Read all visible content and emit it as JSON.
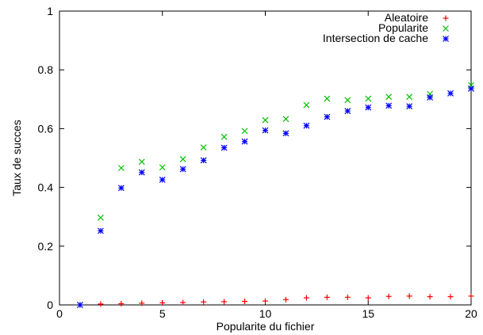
{
  "chart_data": {
    "type": "scatter",
    "title": "",
    "xlabel": "Popularite du fichier",
    "ylabel": "Taux de succes",
    "xlim": [
      0,
      20
    ],
    "ylim": [
      0,
      1
    ],
    "x_ticks": [
      "0",
      "5",
      "10",
      "15",
      "20"
    ],
    "y_ticks": [
      "0",
      "0.2",
      "0.4",
      "0.6",
      "0.8",
      "1"
    ],
    "grid": false,
    "legend_position": "top-right",
    "series": [
      {
        "name": "Aleatoire",
        "color": "#ff0000",
        "marker": "plus",
        "points": [
          [
            1,
            0.0
          ],
          [
            2,
            0.003
          ],
          [
            3,
            0.004
          ],
          [
            4,
            0.006
          ],
          [
            5,
            0.007
          ],
          [
            6,
            0.008
          ],
          [
            7,
            0.01
          ],
          [
            8,
            0.011
          ],
          [
            9,
            0.012
          ],
          [
            10,
            0.013
          ],
          [
            11,
            0.018
          ],
          [
            12,
            0.024
          ],
          [
            13,
            0.026
          ],
          [
            14,
            0.026
          ],
          [
            15,
            0.024
          ],
          [
            16,
            0.029
          ],
          [
            17,
            0.03
          ],
          [
            18,
            0.028
          ],
          [
            19,
            0.028
          ],
          [
            20,
            0.03
          ]
        ]
      },
      {
        "name": "Popularite",
        "color": "#00c000",
        "marker": "cross",
        "points": [
          [
            1,
            0.0
          ],
          [
            2,
            0.297
          ],
          [
            3,
            0.466
          ],
          [
            4,
            0.487
          ],
          [
            5,
            0.468
          ],
          [
            6,
            0.496
          ],
          [
            7,
            0.536
          ],
          [
            8,
            0.572
          ],
          [
            9,
            0.592
          ],
          [
            10,
            0.629
          ],
          [
            11,
            0.633
          ],
          [
            12,
            0.68
          ],
          [
            13,
            0.702
          ],
          [
            14,
            0.697
          ],
          [
            15,
            0.702
          ],
          [
            16,
            0.708
          ],
          [
            17,
            0.708
          ],
          [
            18,
            0.718
          ],
          [
            19,
            0.72
          ],
          [
            20,
            0.748
          ]
        ]
      },
      {
        "name": "Intersection de cache",
        "color": "#0000ff",
        "marker": "star",
        "points": [
          [
            1,
            0.0
          ],
          [
            2,
            0.252
          ],
          [
            3,
            0.398
          ],
          [
            4,
            0.451
          ],
          [
            5,
            0.426
          ],
          [
            6,
            0.462
          ],
          [
            7,
            0.492
          ],
          [
            8,
            0.535
          ],
          [
            9,
            0.556
          ],
          [
            10,
            0.594
          ],
          [
            11,
            0.584
          ],
          [
            12,
            0.61
          ],
          [
            13,
            0.64
          ],
          [
            14,
            0.66
          ],
          [
            15,
            0.672
          ],
          [
            16,
            0.678
          ],
          [
            17,
            0.676
          ],
          [
            18,
            0.706
          ],
          [
            19,
            0.72
          ],
          [
            20,
            0.736
          ]
        ]
      }
    ]
  }
}
